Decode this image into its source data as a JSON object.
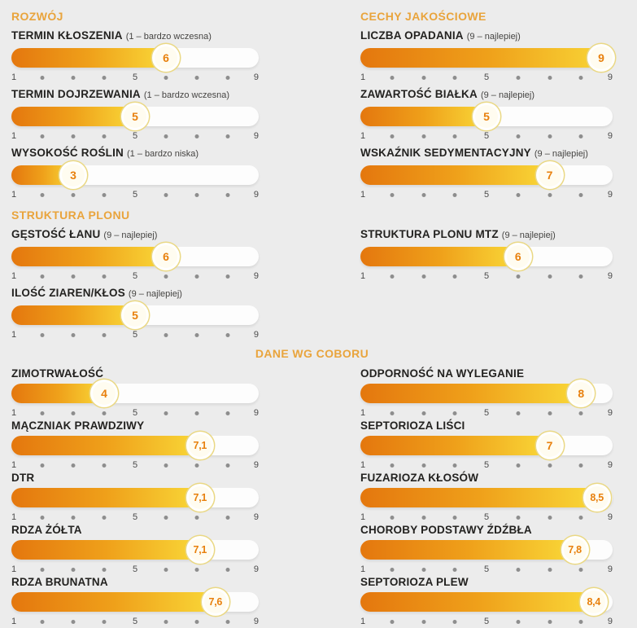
{
  "page": {
    "background": "#ececec",
    "accent": "#e9a43c"
  },
  "axis": {
    "min": 1,
    "max": 9,
    "labels": {
      "start": "1",
      "mid": "5",
      "end": "9"
    }
  },
  "colors": {
    "header": "#e9a43c",
    "label": "#232220",
    "note": "#454442",
    "fill_start": "#e4770e",
    "fill_end": "#f9d838",
    "badge_text": "#e8800d",
    "badge_ring": "#ead884",
    "axis_number": "#4b4b4b",
    "axis_dot": "#8e8e8e"
  },
  "sections": {
    "rozwoj": {
      "header": "ROZWÓJ",
      "items": [
        {
          "label": "TERMIN KŁOSZENIA",
          "note": "(1 – bardzo wczesna)",
          "value": 6,
          "display": "6"
        },
        {
          "label": "TERMIN DOJRZEWANIA",
          "note": "(1 – bardzo wczesna)",
          "value": 5,
          "display": "5"
        },
        {
          "label": "WYSOKOŚĆ ROŚLIN",
          "note": "(1 – bardzo niska)",
          "value": 3,
          "display": "3"
        }
      ]
    },
    "cechy": {
      "header": "CECHY JAKOŚCIOWE",
      "items": [
        {
          "label": "LICZBA OPADANIA",
          "note": "(9 – najlepiej)",
          "value": 9,
          "display": "9"
        },
        {
          "label": "ZAWARTOŚĆ BIAŁKA",
          "note": "(9 – najlepiej)",
          "value": 5,
          "display": "5"
        },
        {
          "label": "WSKAŹNIK SEDYMENTACYJNY",
          "note": "(9 – najlepiej)",
          "value": 7,
          "display": "7"
        }
      ]
    },
    "struktura": {
      "header": "STRUKTURA PLONU",
      "items": [
        {
          "label": "GĘSTOŚĆ ŁANU",
          "note": "(9 – najlepiej)",
          "value": 6,
          "display": "6"
        },
        {
          "label": "ILOŚĆ ZIAREN/KŁOS",
          "note": "(9 – najlepiej)",
          "value": 5,
          "display": "5"
        }
      ]
    },
    "struktura_mtz": {
      "items": [
        {
          "label": "STRUKTURA PLONU MTZ",
          "note": "(9 – najlepiej)",
          "value": 6,
          "display": "6"
        }
      ]
    },
    "coboru": {
      "header": "DANE WG COBORU",
      "left": [
        {
          "label": "ZIMOTRWAŁOŚĆ",
          "note": "",
          "value": 4,
          "display": "4"
        },
        {
          "label": "MĄCZNIAK PRAWDZIWY",
          "note": "",
          "value": 7.1,
          "display": "7,1"
        },
        {
          "label": "DTR",
          "note": "",
          "value": 7.1,
          "display": "7,1"
        },
        {
          "label": "RDZA ŻÓŁTA",
          "note": "",
          "value": 7.1,
          "display": "7,1"
        },
        {
          "label": "RDZA BRUNATNA",
          "note": "",
          "value": 7.6,
          "display": "7,6"
        }
      ],
      "right": [
        {
          "label": "ODPORNOŚĆ NA WYLEGANIE",
          "note": "",
          "value": 8,
          "display": "8"
        },
        {
          "label": "SEPTORIOZA LIŚCI",
          "note": "",
          "value": 7,
          "display": "7"
        },
        {
          "label": "FUZARIOZA KŁOSÓW",
          "note": "",
          "value": 8.5,
          "display": "8,5"
        },
        {
          "label": "CHOROBY PODSTAWY ŹDŹBŁA",
          "note": "",
          "value": 7.8,
          "display": "7,8"
        },
        {
          "label": "SEPTORIOZA PLEW",
          "note": "",
          "value": 8.4,
          "display": "8,4"
        }
      ]
    }
  },
  "chart_data": {
    "type": "bar",
    "orientation": "horizontal",
    "scale": {
      "min": 1,
      "max": 9
    },
    "axis_ticks": [
      1,
      2,
      3,
      4,
      5,
      6,
      7,
      8,
      9
    ],
    "axis_labeled_ticks": [
      1,
      5,
      9
    ],
    "groups": [
      {
        "title": "ROZWÓJ",
        "bars": [
          {
            "label": "TERMIN KŁOSZENIA",
            "scale_note": "1 – bardzo wczesna",
            "value": 6
          },
          {
            "label": "TERMIN DOJRZEWANIA",
            "scale_note": "1 – bardzo wczesna",
            "value": 5
          },
          {
            "label": "WYSOKOŚĆ ROŚLIN",
            "scale_note": "1 – bardzo niska",
            "value": 3
          }
        ]
      },
      {
        "title": "CECHY JAKOŚCIOWE",
        "bars": [
          {
            "label": "LICZBA OPADANIA",
            "scale_note": "9 – najlepiej",
            "value": 9
          },
          {
            "label": "ZAWARTOŚĆ BIAŁKA",
            "scale_note": "9 – najlepiej",
            "value": 5
          },
          {
            "label": "WSKAŹNIK SEDYMENTACYJNY",
            "scale_note": "9 – najlepiej",
            "value": 7
          },
          {
            "label": "STRUKTURA PLONU MTZ",
            "scale_note": "9 – najlepiej",
            "value": 6
          }
        ]
      },
      {
        "title": "STRUKTURA PLONU",
        "bars": [
          {
            "label": "GĘSTOŚĆ ŁANU",
            "scale_note": "9 – najlepiej",
            "value": 6
          },
          {
            "label": "ILOŚĆ ZIAREN/KŁOS",
            "scale_note": "9 – najlepiej",
            "value": 5
          }
        ]
      },
      {
        "title": "DANE WG COBORU",
        "bars": [
          {
            "label": "ZIMOTRWAŁOŚĆ",
            "value": 4
          },
          {
            "label": "MĄCZNIAK PRAWDZIWY",
            "value": 7.1
          },
          {
            "label": "DTR",
            "value": 7.1
          },
          {
            "label": "RDZA ŻÓŁTA",
            "value": 7.1
          },
          {
            "label": "RDZA BRUNATNA",
            "value": 7.6
          },
          {
            "label": "ODPORNOŚĆ NA WYLEGANIE",
            "value": 8
          },
          {
            "label": "SEPTORIOZA LIŚCI",
            "value": 7
          },
          {
            "label": "FUZARIOZA KŁOSÓW",
            "value": 8.5
          },
          {
            "label": "CHOROBY PODSTAWY ŹDŹBŁA",
            "value": 7.8
          },
          {
            "label": "SEPTORIOZA PLEW",
            "value": 8.4
          }
        ]
      }
    ]
  }
}
